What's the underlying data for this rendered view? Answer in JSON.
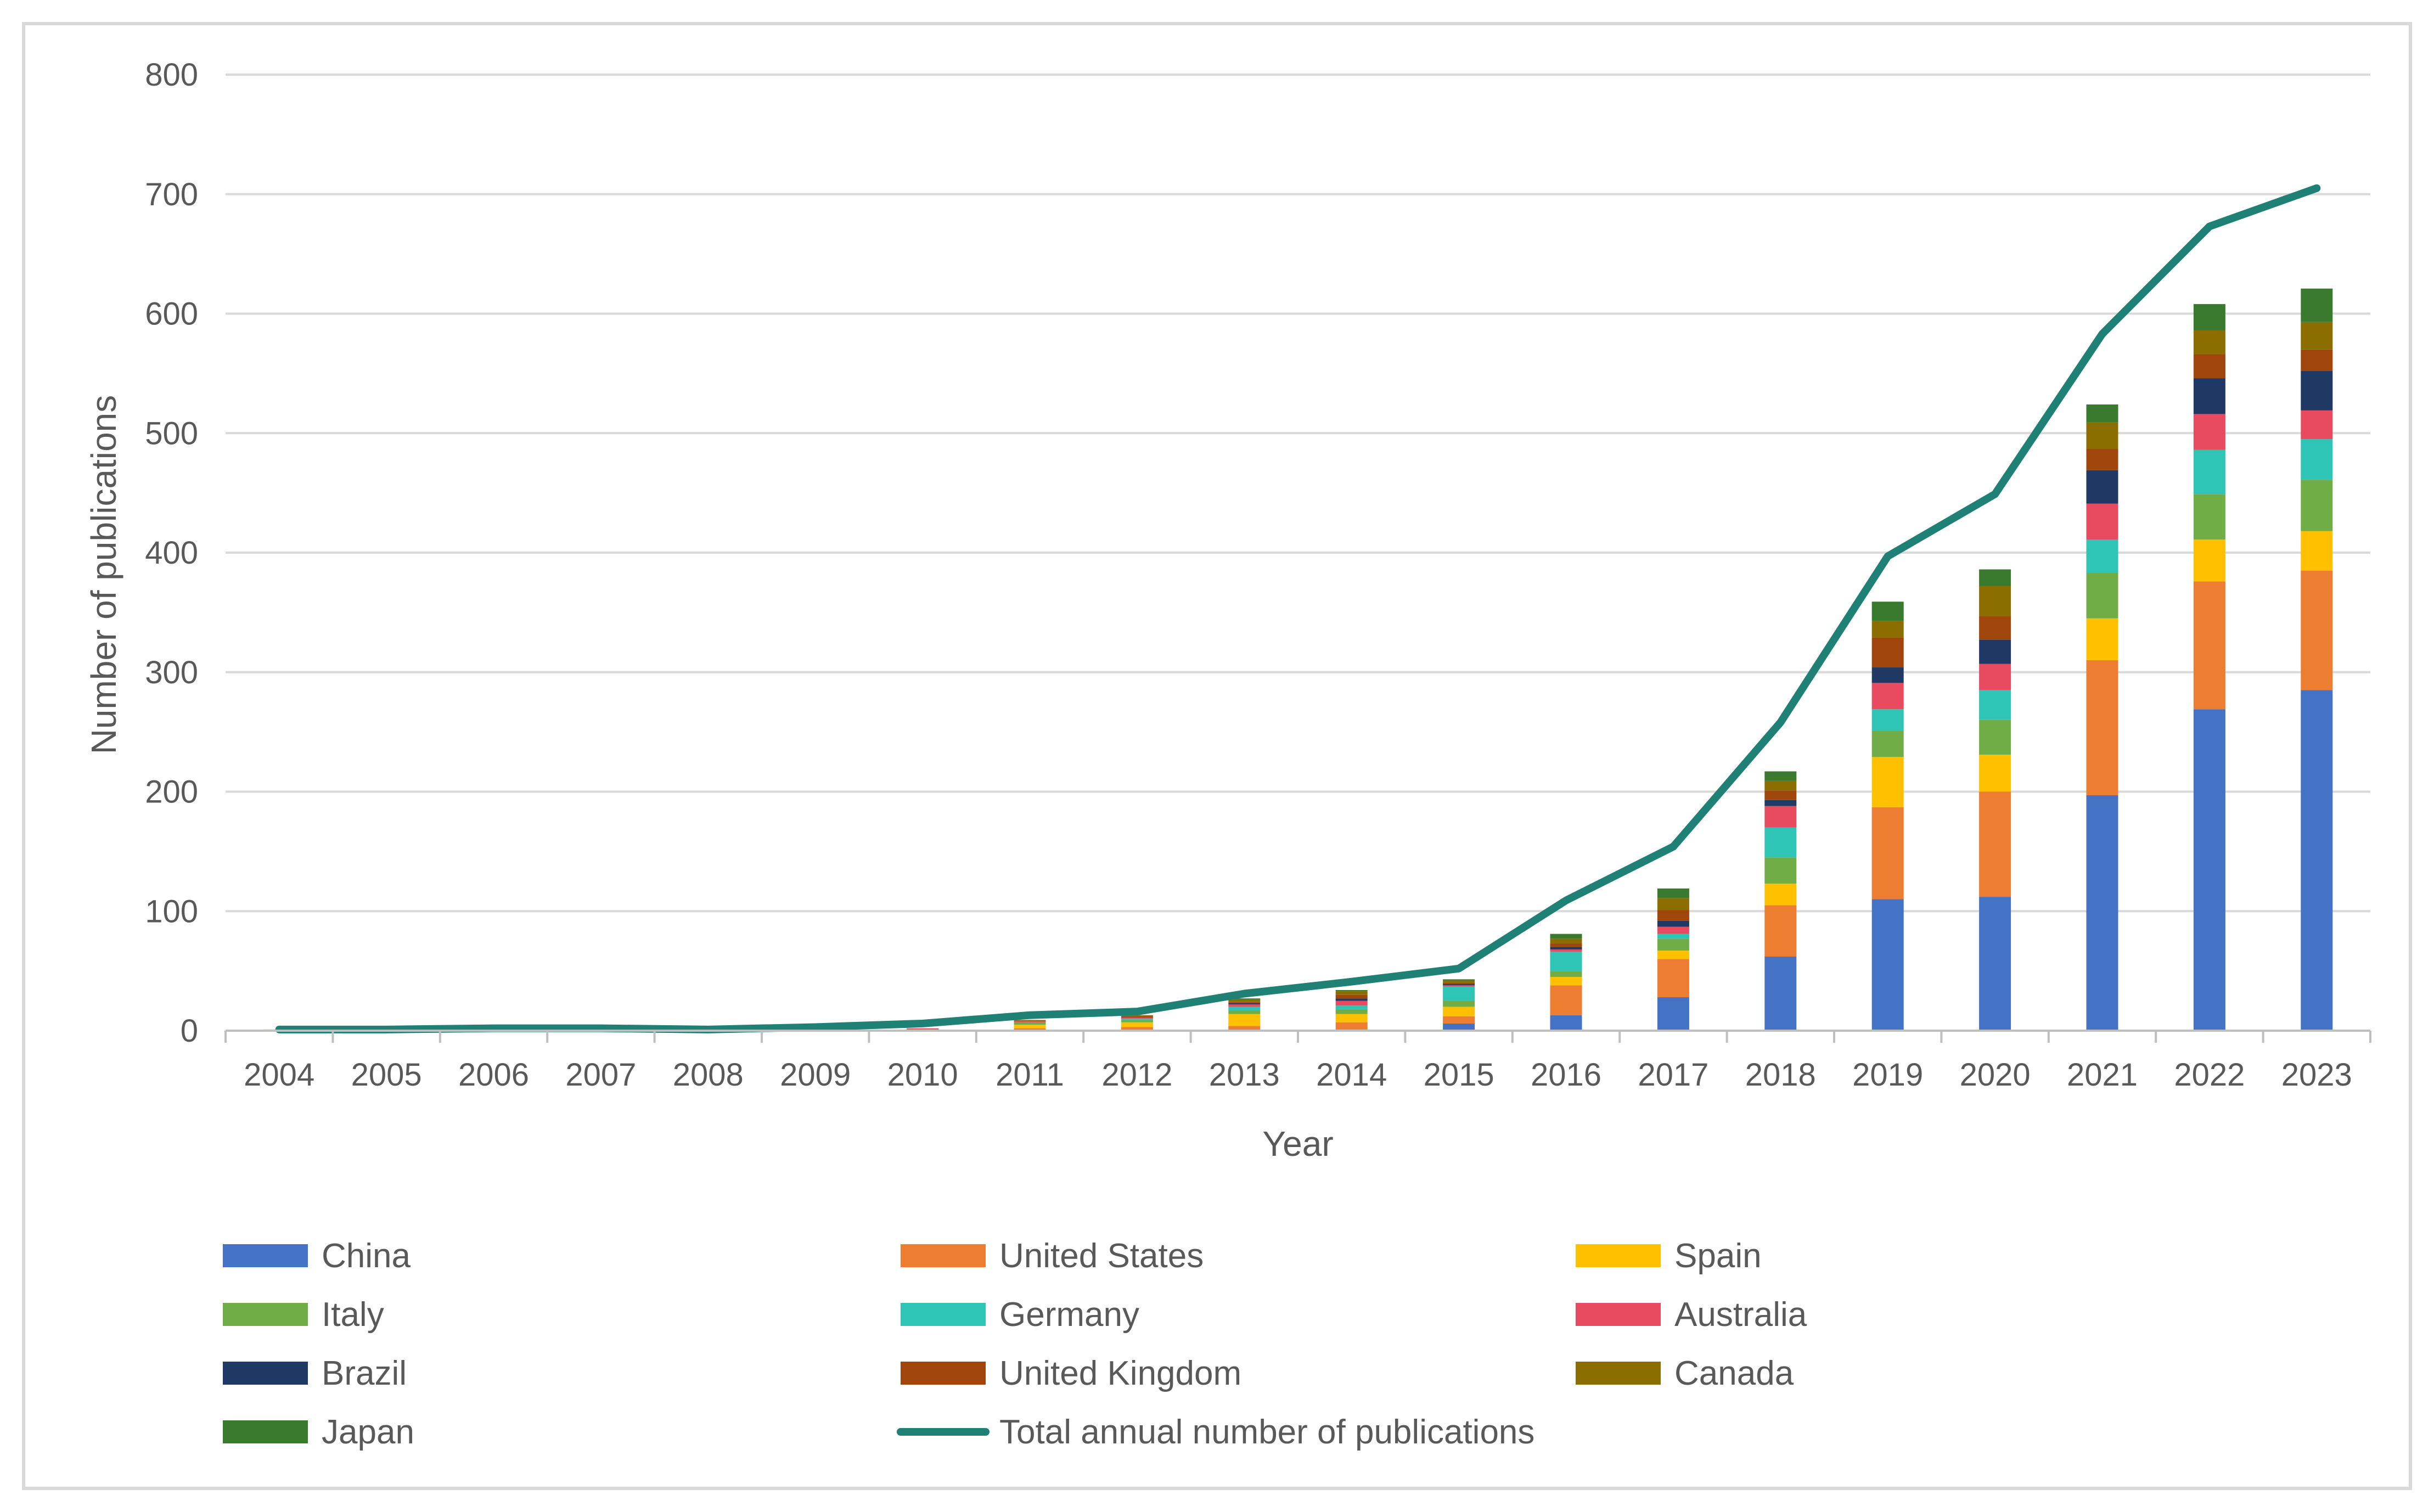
{
  "chart_data": {
    "type": "bar",
    "stacked": true,
    "title": "",
    "xlabel": "Year",
    "ylabel": "Number of publications",
    "ylim": [
      0,
      800
    ],
    "yticks": [
      0,
      100,
      200,
      300,
      400,
      500,
      600,
      700,
      800
    ],
    "grid": true,
    "legend_position": "bottom",
    "categories": [
      "2004",
      "2005",
      "2006",
      "2007",
      "2008",
      "2009",
      "2010",
      "2011",
      "2012",
      "2013",
      "2014",
      "2015",
      "2016",
      "2017",
      "2018",
      "2019",
      "2020",
      "2021",
      "2022",
      "2023"
    ],
    "series": [
      {
        "name": "China",
        "color": "#4472C4",
        "values": [
          0,
          0,
          0,
          0,
          0,
          0,
          0,
          0,
          0,
          0,
          1,
          6,
          13,
          28,
          62,
          110,
          112,
          197,
          269,
          285
        ]
      },
      {
        "name": "United States",
        "color": "#ED7D31",
        "values": [
          1,
          0,
          0,
          0,
          0,
          0,
          1,
          2,
          3,
          4,
          6,
          6,
          25,
          32,
          43,
          77,
          88,
          113,
          107,
          100
        ]
      },
      {
        "name": "Spain",
        "color": "#FFC000",
        "values": [
          0,
          0,
          0,
          0,
          0,
          0,
          0,
          3,
          4,
          10,
          7,
          8,
          7,
          7,
          18,
          42,
          31,
          35,
          35,
          33
        ]
      },
      {
        "name": "Italy",
        "color": "#70AD47",
        "values": [
          0,
          0,
          0,
          0,
          0,
          0,
          0,
          2,
          2,
          3,
          4,
          5,
          5,
          10,
          22,
          22,
          29,
          38,
          38,
          43
        ]
      },
      {
        "name": "Germany",
        "color": "#2EC4B6",
        "values": [
          0,
          0,
          0,
          0,
          0,
          0,
          0,
          0,
          1,
          3,
          3,
          12,
          16,
          4,
          25,
          18,
          25,
          28,
          37,
          34
        ]
      },
      {
        "name": "Australia",
        "color": "#E84B5F",
        "values": [
          0,
          0,
          0,
          0,
          0,
          0,
          1,
          1,
          1,
          2,
          4,
          1,
          2,
          6,
          18,
          22,
          22,
          30,
          30,
          24
        ]
      },
      {
        "name": "Brazil",
        "color": "#203864",
        "values": [
          0,
          0,
          0,
          0,
          0,
          0,
          0,
          0,
          0,
          1,
          2,
          1,
          2,
          5,
          5,
          13,
          20,
          28,
          30,
          33
        ]
      },
      {
        "name": "United Kingdom",
        "color": "#A0450B",
        "values": [
          0,
          0,
          0,
          0,
          0,
          0,
          0,
          0,
          1,
          1,
          3,
          1,
          3,
          9,
          8,
          25,
          20,
          18,
          20,
          18
        ]
      },
      {
        "name": "Canada",
        "color": "#8C6D00",
        "values": [
          0,
          0,
          0,
          0,
          0,
          0,
          0,
          1,
          1,
          2,
          3,
          2,
          4,
          10,
          8,
          14,
          25,
          22,
          20,
          23
        ]
      },
      {
        "name": "Japan",
        "color": "#3A7A2E",
        "values": [
          0,
          0,
          0,
          0,
          0,
          0,
          0,
          0,
          0,
          1,
          1,
          1,
          4,
          8,
          8,
          16,
          14,
          15,
          22,
          28
        ]
      }
    ],
    "line_series": {
      "name": "Total annual number of publications",
      "color": "#1F8075",
      "values": [
        1,
        1,
        2,
        2,
        1,
        3,
        6,
        13,
        16,
        31,
        41,
        52,
        109,
        154,
        258,
        397,
        449,
        583,
        673,
        705
      ]
    }
  }
}
